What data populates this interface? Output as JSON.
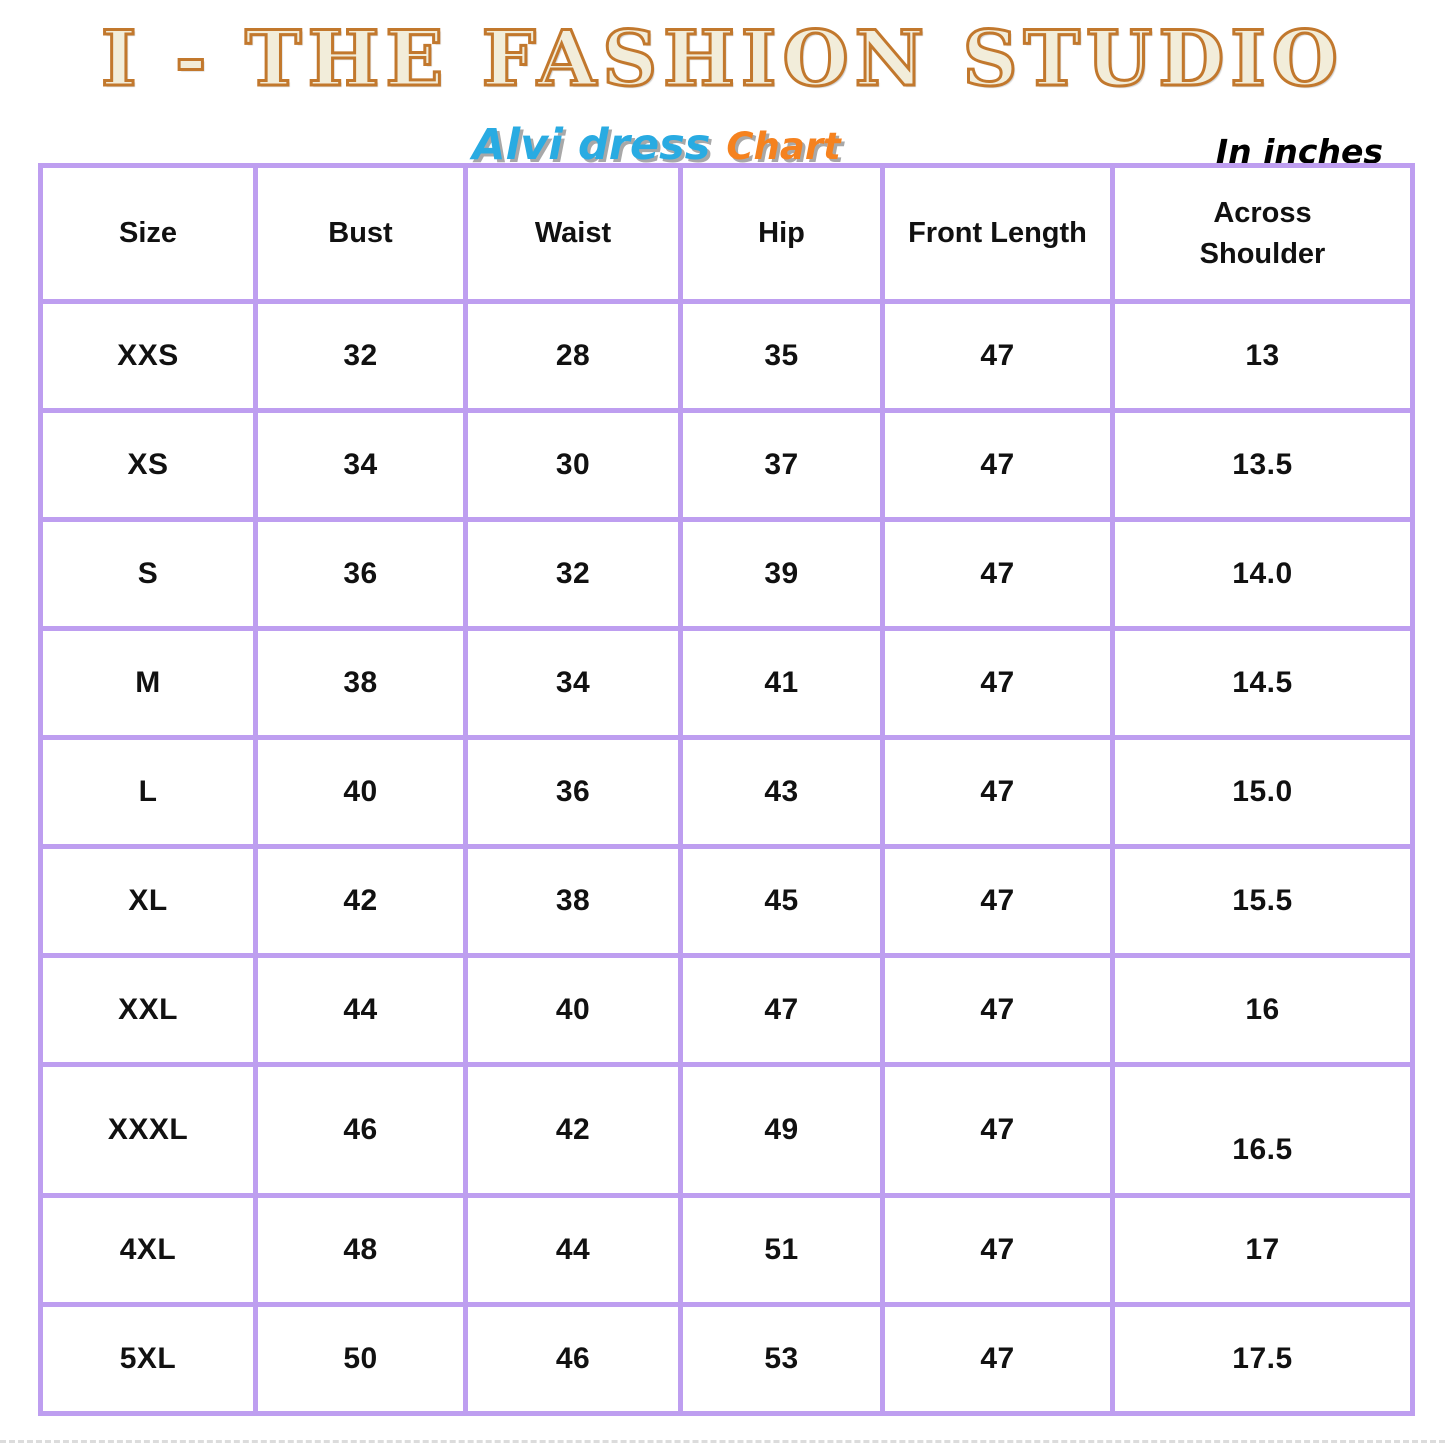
{
  "header": {
    "brand_title": "I - THE FASHION STUDIO",
    "product_name": "Alvi dress",
    "chart_label": "Chart",
    "units_label": "In inches"
  },
  "colors": {
    "title_fill": "#F2EDDA",
    "title_outline": "#C2782D",
    "product_name_blue": "#29ABE2",
    "chart_label_orange": "#F5821F",
    "table_border_purple": "#BE9EF0",
    "text_black": "#111111",
    "shadow_gray": "#A8A8A8"
  },
  "chart_data": {
    "type": "table",
    "title": "Alvi dress Chart",
    "units": "inches",
    "columns": [
      "Size",
      "Bust",
      "Waist",
      "Hip",
      "Front Length",
      "Across\nShoulder"
    ],
    "rows": [
      [
        "XXS",
        "32",
        "28",
        "35",
        "47",
        "13"
      ],
      [
        "XS",
        "34",
        "30",
        "37",
        "47",
        "13.5"
      ],
      [
        "S",
        "36",
        "32",
        "39",
        "47",
        "14.0"
      ],
      [
        "M",
        "38",
        "34",
        "41",
        "47",
        "14.5"
      ],
      [
        "L",
        "40",
        "36",
        "43",
        "47",
        "15.0"
      ],
      [
        "XL",
        "42",
        "38",
        "45",
        "47",
        "15.5"
      ],
      [
        "XXL",
        "44",
        "40",
        "47",
        "47",
        "16"
      ],
      [
        "XXXL",
        "46",
        "42",
        "49",
        "47",
        "16.5"
      ],
      [
        "4XL",
        "48",
        "44",
        "51",
        "47",
        "17"
      ],
      [
        "5XL",
        "50",
        "46",
        "53",
        "47",
        "17.5"
      ]
    ]
  }
}
